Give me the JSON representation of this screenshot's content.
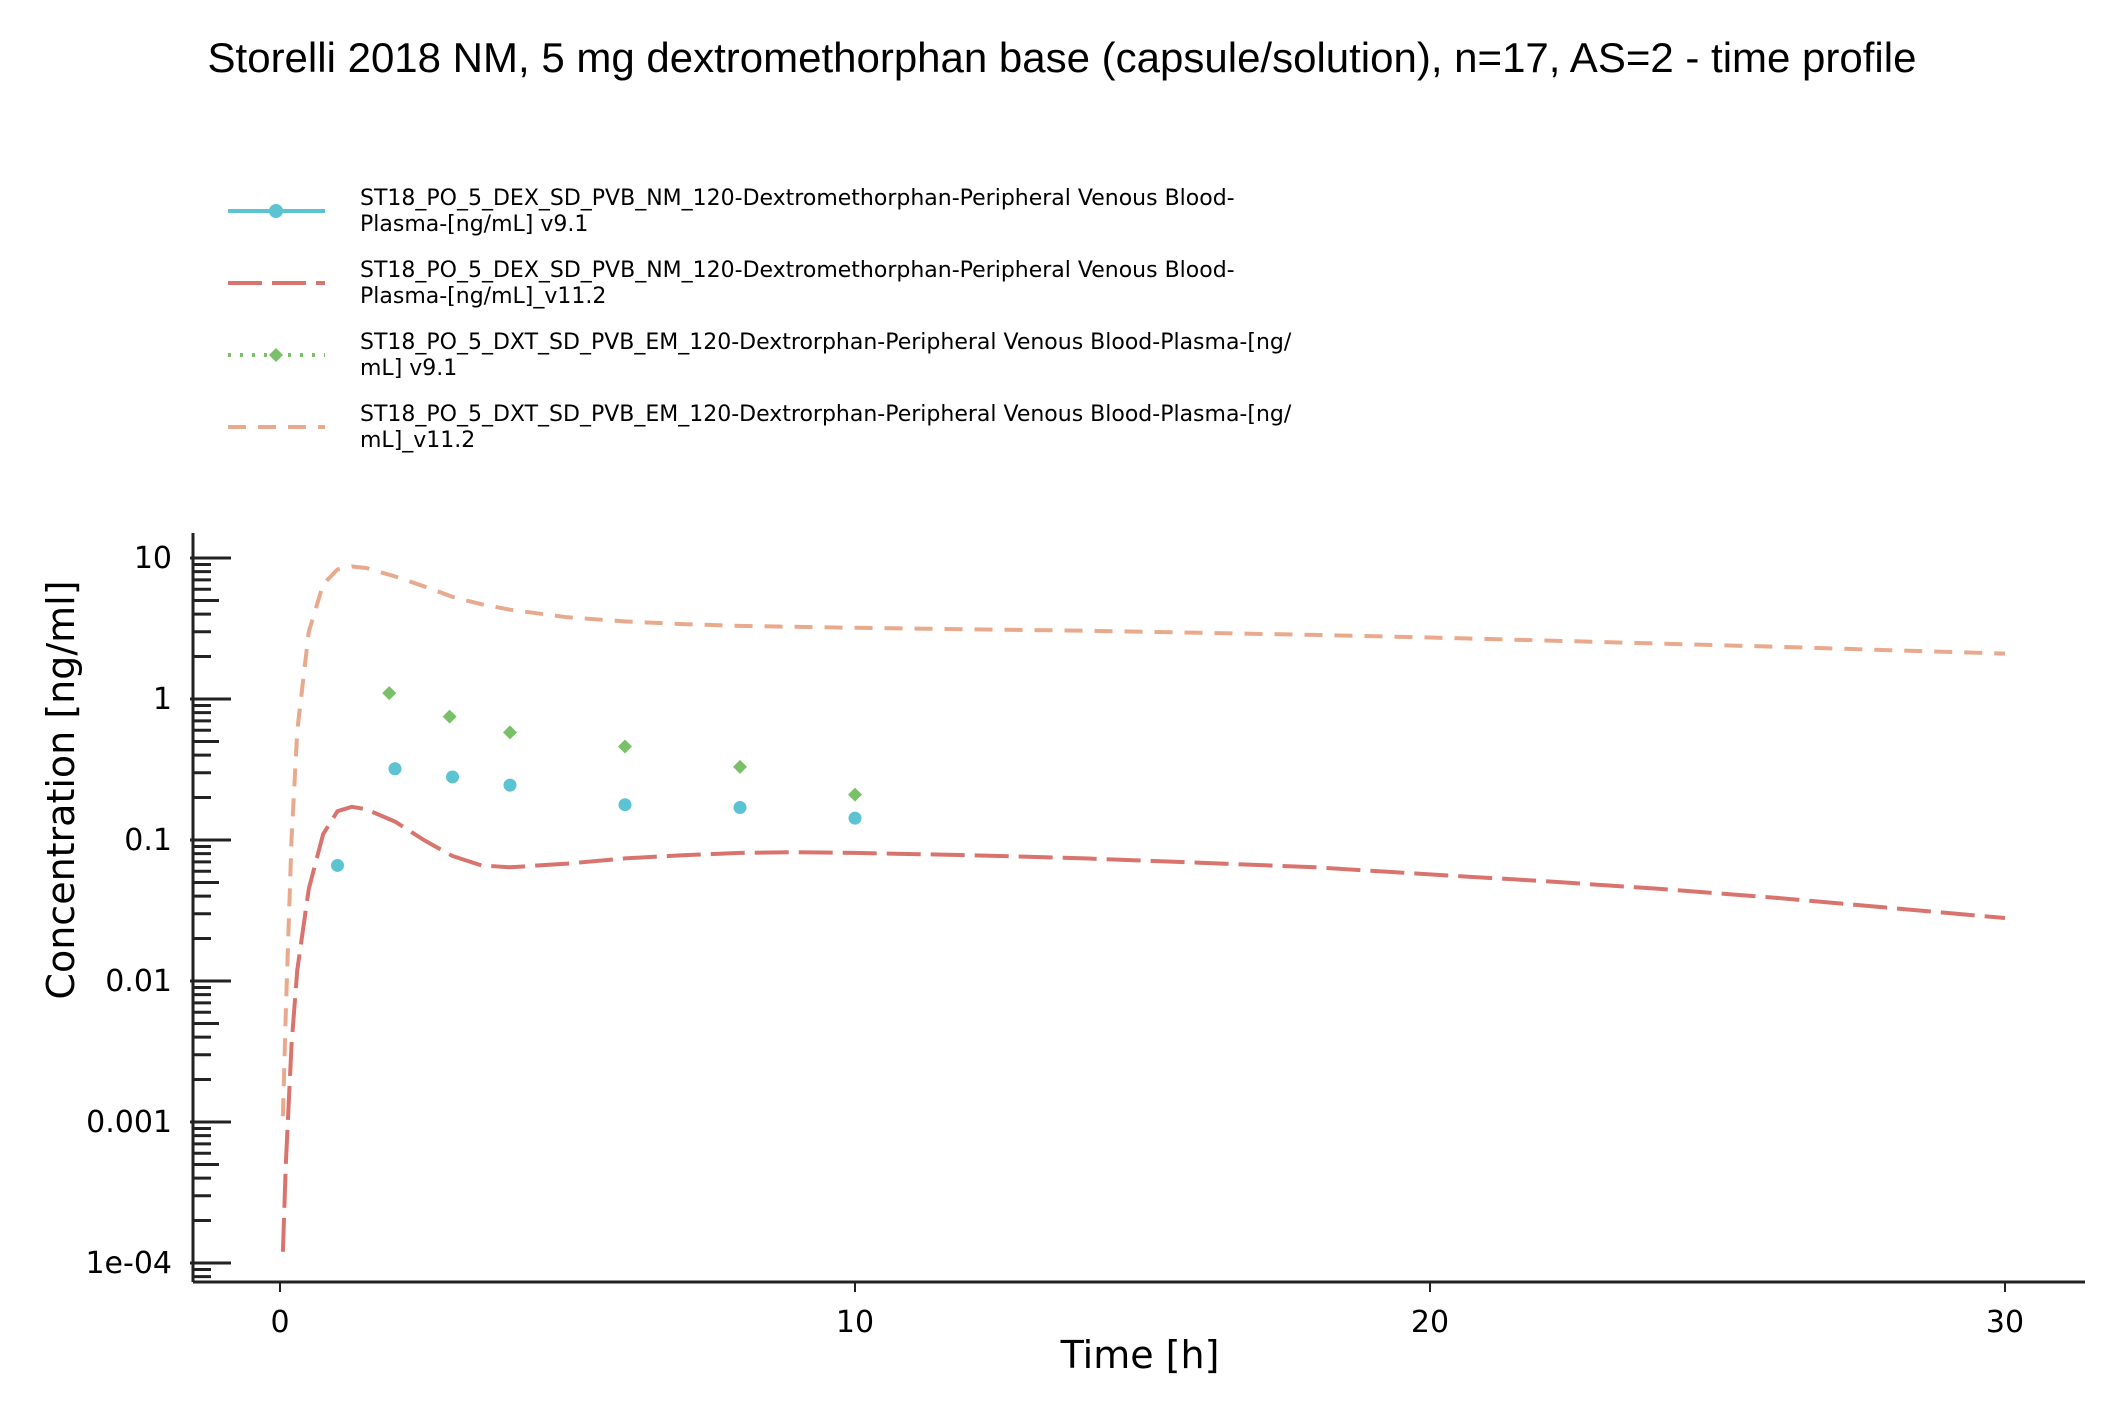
{
  "chart_data": {
    "type": "line",
    "title": "Storelli 2018 NM, 5 mg dextromethorphan base (capsule/solution), n=17, AS=2 - time profile",
    "xlabel": "Time [h]",
    "ylabel": "Concentration [ng/ml]",
    "xlim": [
      -1.5,
      31.5
    ],
    "ylim": [
      8e-05,
      14
    ],
    "y_scale": "log",
    "x_ticks": [
      0,
      10,
      20,
      30
    ],
    "x_tick_labels": [
      "0",
      "10",
      "20",
      "30"
    ],
    "y_ticks": [
      0.0001,
      0.001,
      0.01,
      0.1,
      1,
      10
    ],
    "y_tick_labels": [
      "1e-04",
      "0.001",
      "0.01",
      "0.1",
      "1",
      "10"
    ],
    "grid": false,
    "legend_position": "top",
    "series": [
      {
        "name": "ST18_PO_5_DEX_SD_PVB_NM_120-Dextromethorphan-Peripheral Venous Blood-Plasma-[ng/mL] v9.1",
        "legend_lines": [
          "ST18_PO_5_DEX_SD_PVB_NM_120-Dextromethorphan-Peripheral Venous Blood-",
          "Plasma-[ng/mL] v9.1"
        ],
        "kind": "observed",
        "marker": "circle",
        "color": "#5bc3d1",
        "x": [
          1,
          2,
          3,
          4,
          6,
          8,
          10
        ],
        "y": [
          0.066,
          0.32,
          0.28,
          0.245,
          0.178,
          0.17,
          0.143
        ]
      },
      {
        "name": "ST18_PO_5_DEX_SD_PVB_NM_120-Dextromethorphan-Peripheral Venous Blood-Plasma-[ng/mL]_v11.2",
        "legend_lines": [
          "ST18_PO_5_DEX_SD_PVB_NM_120-Dextromethorphan-Peripheral Venous Blood-",
          "Plasma-[ng/mL]_v11.2"
        ],
        "kind": "simulated",
        "color": "#d9736e",
        "x": [
          0.05,
          0.1,
          0.2,
          0.3,
          0.5,
          0.75,
          1.0,
          1.25,
          1.5,
          2.0,
          2.5,
          3.0,
          3.5,
          4.0,
          5.0,
          6.0,
          7.0,
          8.0,
          9.0,
          10.0,
          12.0,
          14.0,
          16.0,
          18.0,
          20.0,
          22.0,
          24.0,
          26.0,
          28.0,
          30.0
        ],
        "y": [
          0.00012,
          0.0005,
          0.0035,
          0.012,
          0.045,
          0.11,
          0.16,
          0.172,
          0.165,
          0.135,
          0.1,
          0.077,
          0.066,
          0.064,
          0.068,
          0.074,
          0.078,
          0.081,
          0.082,
          0.081,
          0.078,
          0.074,
          0.069,
          0.064,
          0.057,
          0.051,
          0.045,
          0.039,
          0.033,
          0.028
        ]
      },
      {
        "name": "ST18_PO_5_DXT_SD_PVB_EM_120-Dextrorphan-Peripheral Venous Blood-Plasma-[ng/mL] v9.1",
        "legend_lines": [
          "ST18_PO_5_DXT_SD_PVB_EM_120-Dextrorphan-Peripheral Venous Blood-Plasma-[ng/",
          "mL] v9.1"
        ],
        "kind": "observed",
        "marker": "diamond",
        "color": "#78c168",
        "x": [
          1.9,
          2.95,
          4.0,
          6.0,
          8.0,
          10.0
        ],
        "y": [
          1.1,
          0.75,
          0.58,
          0.46,
          0.33,
          0.21
        ]
      },
      {
        "name": "ST18_PO_5_DXT_SD_PVB_EM_120-Dextrorphan-Peripheral Venous Blood-Plasma-[ng/mL]_v11.2",
        "legend_lines": [
          "ST18_PO_5_DXT_SD_PVB_EM_120-Dextrorphan-Peripheral Venous Blood-Plasma-[ng/",
          "mL]_v11.2"
        ],
        "kind": "simulated",
        "color": "#e8a98c",
        "x": [
          0.05,
          0.1,
          0.2,
          0.3,
          0.5,
          0.75,
          1.0,
          1.25,
          1.5,
          2.0,
          2.5,
          3.0,
          3.5,
          4.0,
          5.0,
          6.0,
          7.0,
          8.0,
          10.0,
          12.0,
          14.0,
          16.0,
          18.0,
          20.0,
          22.0,
          24.0,
          26.0,
          28.0,
          30.0
        ],
        "y": [
          0.0011,
          0.006,
          0.1,
          0.6,
          3.0,
          6.5,
          8.3,
          8.7,
          8.5,
          7.4,
          6.3,
          5.3,
          4.7,
          4.3,
          3.8,
          3.55,
          3.4,
          3.3,
          3.2,
          3.12,
          3.05,
          2.95,
          2.85,
          2.73,
          2.6,
          2.47,
          2.35,
          2.22,
          2.1
        ]
      }
    ]
  }
}
